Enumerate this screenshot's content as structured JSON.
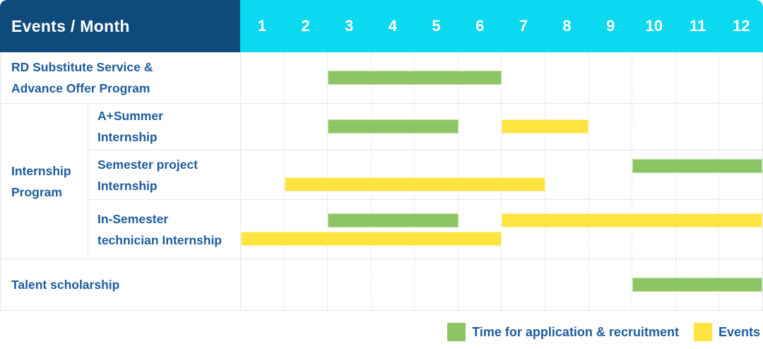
{
  "header": {
    "title": "Events / Month",
    "months": [
      "1",
      "2",
      "3",
      "4",
      "5",
      "6",
      "7",
      "8",
      "9",
      "10",
      "11",
      "12"
    ]
  },
  "group": {
    "label_lines": [
      "Internship",
      "Program"
    ]
  },
  "rows": [
    {
      "id": "rd-substitute",
      "label_lines": [
        "RD Substitute Service &",
        "Advance Offer Program"
      ],
      "lines": [
        [
          {
            "type": "application",
            "start": 3,
            "end": 6
          }
        ]
      ]
    },
    {
      "id": "a-plus-summer",
      "label_lines": [
        "A+Summer",
        "Internship"
      ],
      "lines": [
        [
          {
            "type": "application",
            "start": 3,
            "end": 5
          },
          {
            "type": "events",
            "start": 7,
            "end": 8
          }
        ]
      ]
    },
    {
      "id": "semester-project",
      "label_lines": [
        "Semester project",
        "Internship"
      ],
      "lines": [
        [
          {
            "type": "application",
            "start": 10,
            "end": 12
          }
        ],
        [
          {
            "type": "events",
            "start": 2,
            "end": 7
          }
        ]
      ]
    },
    {
      "id": "in-semester-technician",
      "label_lines": [
        "In-Semester",
        "technician Internship"
      ],
      "lines": [
        [
          {
            "type": "application",
            "start": 3,
            "end": 5
          },
          {
            "type": "events",
            "start": 7,
            "end": 12
          }
        ],
        [
          {
            "type": "events",
            "start": 1,
            "end": 6
          }
        ]
      ]
    },
    {
      "id": "talent-scholarship",
      "label_lines": [
        "Talent scholarship"
      ],
      "lines": [
        [
          {
            "type": "application",
            "start": 10,
            "end": 12
          }
        ]
      ]
    }
  ],
  "legend": {
    "items": [
      {
        "type": "application",
        "color": "#8cc664",
        "label": "Time for application & recruitment"
      },
      {
        "type": "events",
        "color": "#ffe33e",
        "label": "Events"
      }
    ]
  },
  "colors": {
    "navy": "#0f4a7d",
    "cyan": "#0bd9ef",
    "green": "#8cc664",
    "yellow": "#ffe33e",
    "label_blue": "#1d5c9e",
    "grid_line": "#e5e5e5"
  },
  "chart_data": {
    "type": "bar",
    "variant": "gantt",
    "title": "Events / Month",
    "x_axis": {
      "label": "Month",
      "ticks": [
        1,
        2,
        3,
        4,
        5,
        6,
        7,
        8,
        9,
        10,
        11,
        12
      ],
      "range": [
        1,
        12
      ]
    },
    "legend_position": "bottom-right",
    "legend": [
      "Time for application & recruitment",
      "Events"
    ],
    "tasks": [
      {
        "name": "RD Substitute Service & Advance Offer Program",
        "group": null,
        "application_recruitment_months": [
          [
            3,
            6
          ]
        ],
        "events_months": []
      },
      {
        "name": "A+Summer Internship",
        "group": "Internship Program",
        "application_recruitment_months": [
          [
            3,
            5
          ]
        ],
        "events_months": [
          [
            7,
            8
          ]
        ]
      },
      {
        "name": "Semester project Internship",
        "group": "Internship Program",
        "application_recruitment_months": [
          [
            10,
            12
          ]
        ],
        "events_months": [
          [
            2,
            7
          ]
        ]
      },
      {
        "name": "In-Semester technician Internship",
        "group": "Internship Program",
        "application_recruitment_months": [
          [
            3,
            5
          ]
        ],
        "events_months": [
          [
            1,
            6
          ],
          [
            7,
            12
          ]
        ]
      },
      {
        "name": "Talent scholarship",
        "group": null,
        "application_recruitment_months": [
          [
            10,
            12
          ]
        ],
        "events_months": []
      }
    ]
  }
}
